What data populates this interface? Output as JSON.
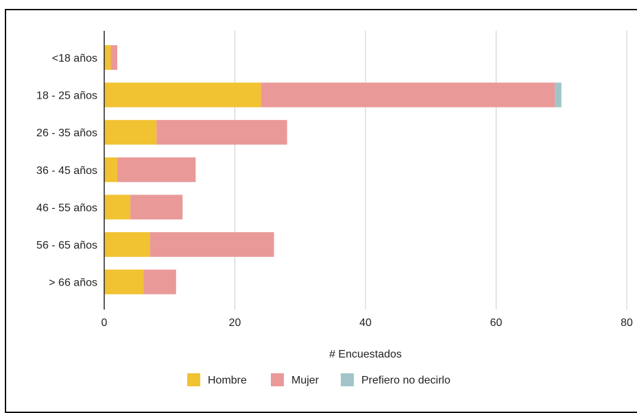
{
  "chart_data": {
    "type": "bar",
    "orientation": "horizontal",
    "stacked": true,
    "categories": [
      "<18 años",
      "18 - 25 años",
      "26 - 35 años",
      "36 - 45 años",
      "46 - 55 años",
      "56 - 65 años",
      "> 66 años"
    ],
    "series": [
      {
        "name": "Hombre",
        "color": "#f1c232",
        "values": [
          1,
          24,
          8,
          2,
          4,
          7,
          6
        ]
      },
      {
        "name": "Mujer",
        "color": "#ea9999",
        "values": [
          1,
          45,
          20,
          12,
          8,
          19,
          5
        ]
      },
      {
        "name": "Prefiero no decirlo",
        "color": "#a2c4c9",
        "values": [
          0,
          1,
          0,
          0,
          0,
          0,
          0
        ]
      }
    ],
    "xlabel": "# Encuestados",
    "ylabel": "",
    "xlim": [
      0,
      80
    ],
    "xticks": [
      0,
      20,
      40,
      60,
      80
    ],
    "grid": true,
    "legend_position": "bottom"
  }
}
